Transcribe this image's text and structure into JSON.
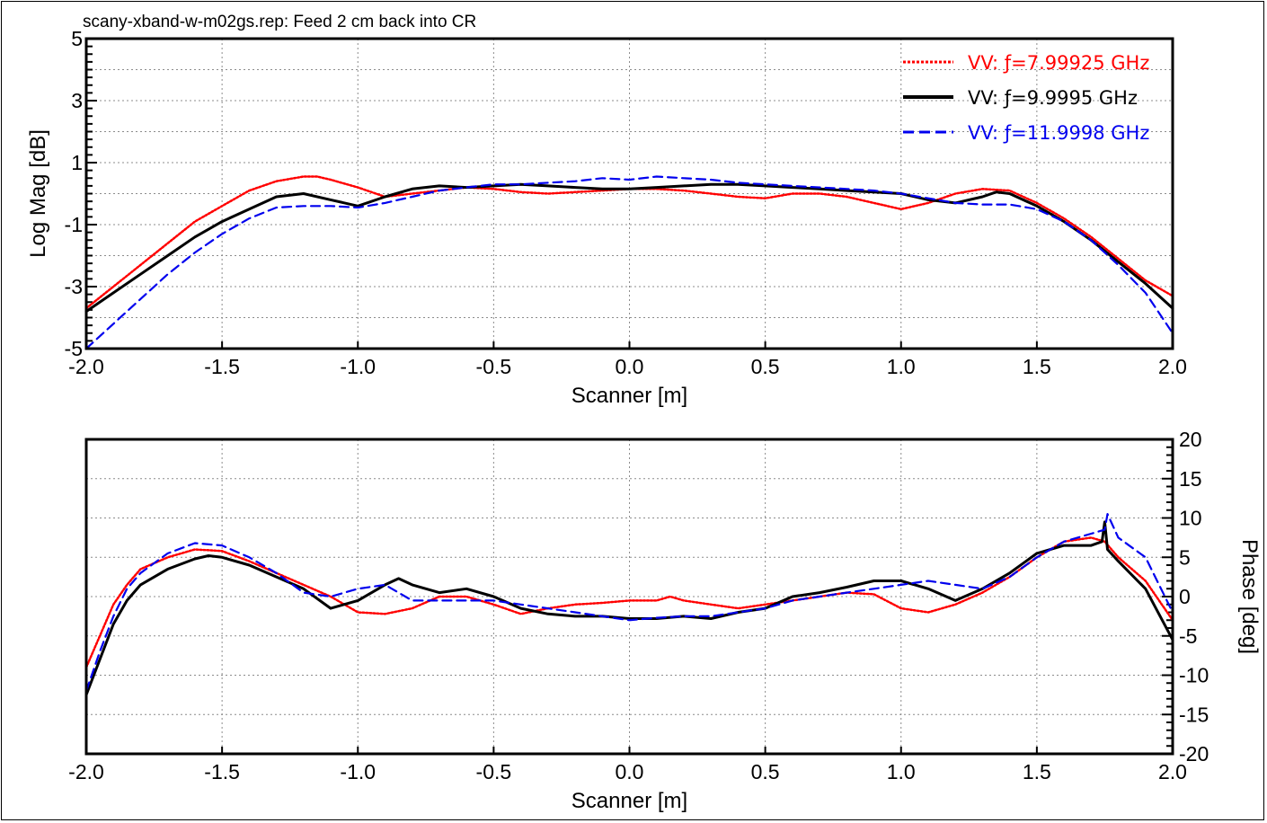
{
  "chart_data": [
    {
      "type": "line",
      "title": "scany-xband-w-m02gs.rep: Feed 2 cm back into CR",
      "xlabel": "Scanner [m]",
      "ylabel": "Log Mag [dB]",
      "xlim": [
        -2.0,
        2.0
      ],
      "ylim": [
        -5,
        5
      ],
      "x_ticks": [
        "-2.0",
        "-1.5",
        "-1.0",
        "-0.5",
        "0.0",
        "0.5",
        "1.0",
        "1.5",
        "2.0"
      ],
      "y_ticks": [
        "5",
        "3",
        "1",
        "-1",
        "-3",
        "-5"
      ],
      "y_tick_values": [
        5,
        3,
        1,
        -1,
        -3,
        -5
      ],
      "grid": true,
      "legend_position": "top-right",
      "series": [
        {
          "name": "VV: ƒ=7.99925 GHz",
          "color": "#ff0000",
          "style": "dotted",
          "x": [
            -2.0,
            -1.9,
            -1.8,
            -1.7,
            -1.6,
            -1.5,
            -1.4,
            -1.3,
            -1.2,
            -1.15,
            -1.1,
            -1.0,
            -0.9,
            -0.8,
            -0.7,
            -0.6,
            -0.5,
            -0.4,
            -0.3,
            -0.2,
            -0.1,
            0.0,
            0.1,
            0.2,
            0.3,
            0.4,
            0.5,
            0.6,
            0.7,
            0.8,
            0.9,
            1.0,
            1.1,
            1.2,
            1.3,
            1.4,
            1.5,
            1.6,
            1.7,
            1.8,
            1.9,
            2.0
          ],
          "y": [
            -3.7,
            -3.0,
            -2.3,
            -1.6,
            -0.9,
            -0.4,
            0.1,
            0.4,
            0.55,
            0.55,
            0.45,
            0.2,
            -0.1,
            0.0,
            0.1,
            0.2,
            0.15,
            0.05,
            0.0,
            0.05,
            0.1,
            0.15,
            0.15,
            0.1,
            0.0,
            -0.1,
            -0.15,
            0.0,
            0.0,
            -0.1,
            -0.3,
            -0.5,
            -0.3,
            0.0,
            0.15,
            0.1,
            -0.3,
            -0.8,
            -1.4,
            -2.1,
            -2.8,
            -3.3
          ]
        },
        {
          "name": "VV: ƒ=9.9995 GHz",
          "color": "#000000",
          "style": "solid",
          "x": [
            -2.0,
            -1.9,
            -1.8,
            -1.7,
            -1.6,
            -1.5,
            -1.4,
            -1.3,
            -1.2,
            -1.1,
            -1.0,
            -0.9,
            -0.8,
            -0.7,
            -0.6,
            -0.5,
            -0.4,
            -0.3,
            -0.2,
            -0.1,
            0.0,
            0.1,
            0.2,
            0.3,
            0.4,
            0.5,
            0.6,
            0.7,
            0.8,
            0.9,
            1.0,
            1.1,
            1.2,
            1.3,
            1.35,
            1.4,
            1.5,
            1.6,
            1.7,
            1.8,
            1.9,
            2.0
          ],
          "y": [
            -3.8,
            -3.2,
            -2.6,
            -2.0,
            -1.4,
            -0.9,
            -0.5,
            -0.1,
            0.0,
            -0.2,
            -0.4,
            -0.1,
            0.15,
            0.25,
            0.2,
            0.25,
            0.3,
            0.25,
            0.2,
            0.15,
            0.15,
            0.2,
            0.25,
            0.3,
            0.3,
            0.25,
            0.2,
            0.15,
            0.1,
            0.05,
            0.0,
            -0.2,
            -0.3,
            -0.1,
            0.05,
            0.0,
            -0.4,
            -0.9,
            -1.5,
            -2.2,
            -2.9,
            -3.7
          ]
        },
        {
          "name": "VV: ƒ=11.9998 GHz",
          "color": "#0000ee",
          "style": "dashed",
          "x": [
            -2.0,
            -1.9,
            -1.8,
            -1.7,
            -1.6,
            -1.5,
            -1.4,
            -1.3,
            -1.2,
            -1.1,
            -1.0,
            -0.9,
            -0.8,
            -0.7,
            -0.6,
            -0.5,
            -0.4,
            -0.3,
            -0.2,
            -0.1,
            0.0,
            0.1,
            0.2,
            0.3,
            0.4,
            0.5,
            0.6,
            0.7,
            0.8,
            0.9,
            1.0,
            1.1,
            1.2,
            1.3,
            1.4,
            1.5,
            1.6,
            1.7,
            1.8,
            1.9,
            2.0
          ],
          "y": [
            -5.0,
            -4.2,
            -3.4,
            -2.6,
            -1.9,
            -1.3,
            -0.8,
            -0.45,
            -0.4,
            -0.4,
            -0.45,
            -0.3,
            -0.1,
            0.1,
            0.2,
            0.3,
            0.3,
            0.35,
            0.4,
            0.5,
            0.45,
            0.55,
            0.5,
            0.45,
            0.35,
            0.3,
            0.25,
            0.2,
            0.15,
            0.1,
            0.0,
            -0.15,
            -0.3,
            -0.35,
            -0.35,
            -0.5,
            -0.9,
            -1.5,
            -2.3,
            -3.2,
            -4.5
          ]
        }
      ]
    },
    {
      "type": "line",
      "title": "",
      "xlabel": "Scanner [m]",
      "ylabel": "Phase [deg]",
      "xlim": [
        -2.0,
        2.0
      ],
      "ylim": [
        -20,
        20
      ],
      "y_axis_side": "right",
      "x_ticks": [
        "-2.0",
        "-1.5",
        "-1.0",
        "-0.5",
        "0.0",
        "0.5",
        "1.0",
        "1.5",
        "2.0"
      ],
      "y_ticks": [
        "20",
        "15",
        "10",
        "5",
        "0",
        "-5",
        "-10",
        "-15",
        "-20"
      ],
      "y_tick_values": [
        20,
        15,
        10,
        5,
        0,
        -5,
        -10,
        -15,
        -20
      ],
      "grid": true,
      "series": [
        {
          "name": "VV: ƒ=7.99925 GHz",
          "color": "#ff0000",
          "style": "dotted",
          "x": [
            -2.0,
            -1.95,
            -1.9,
            -1.85,
            -1.8,
            -1.7,
            -1.6,
            -1.5,
            -1.4,
            -1.3,
            -1.2,
            -1.1,
            -1.0,
            -0.9,
            -0.8,
            -0.7,
            -0.6,
            -0.5,
            -0.4,
            -0.3,
            -0.2,
            -0.1,
            0.0,
            0.1,
            0.15,
            0.2,
            0.3,
            0.4,
            0.5,
            0.6,
            0.7,
            0.8,
            0.9,
            1.0,
            1.1,
            1.2,
            1.3,
            1.4,
            1.5,
            1.6,
            1.7,
            1.75,
            1.8,
            1.9,
            2.0
          ],
          "y": [
            -9,
            -5,
            -1,
            1.5,
            3.5,
            5.0,
            6.0,
            5.8,
            4.5,
            3.0,
            1.5,
            0.0,
            -2.0,
            -2.2,
            -1.5,
            0.0,
            0.0,
            -1.0,
            -2.2,
            -1.5,
            -1.0,
            -0.8,
            -0.5,
            -0.5,
            0.0,
            -0.5,
            -1.0,
            -1.5,
            -1.0,
            -0.5,
            0.0,
            0.5,
            0.3,
            -1.5,
            -2.0,
            -1.0,
            0.5,
            2.5,
            5.0,
            7.0,
            7.5,
            7.0,
            5.0,
            2.0,
            -3.0
          ]
        },
        {
          "name": "VV: ƒ=9.9995 GHz",
          "color": "#000000",
          "style": "solid",
          "x": [
            -2.0,
            -1.95,
            -1.9,
            -1.85,
            -1.8,
            -1.7,
            -1.6,
            -1.55,
            -1.5,
            -1.4,
            -1.3,
            -1.2,
            -1.1,
            -1.0,
            -0.9,
            -0.85,
            -0.8,
            -0.7,
            -0.6,
            -0.5,
            -0.4,
            -0.3,
            -0.2,
            -0.1,
            0.0,
            0.1,
            0.2,
            0.3,
            0.4,
            0.5,
            0.6,
            0.7,
            0.8,
            0.9,
            1.0,
            1.1,
            1.2,
            1.3,
            1.4,
            1.5,
            1.6,
            1.7,
            1.74,
            1.75,
            1.76,
            1.8,
            1.9,
            2.0
          ],
          "y": [
            -12.5,
            -8,
            -3.5,
            -0.5,
            1.5,
            3.5,
            4.8,
            5.2,
            5.0,
            4.0,
            2.5,
            1.0,
            -1.5,
            -0.5,
            1.5,
            2.3,
            1.5,
            0.5,
            1.0,
            0.0,
            -1.5,
            -2.2,
            -2.5,
            -2.5,
            -2.8,
            -2.8,
            -2.5,
            -2.8,
            -2.0,
            -1.5,
            0.0,
            0.5,
            1.2,
            2.0,
            2.0,
            1.0,
            -0.5,
            1.0,
            3.0,
            5.5,
            6.5,
            6.5,
            7.0,
            9.5,
            6.0,
            4.5,
            1.0,
            -5.5
          ]
        },
        {
          "name": "VV: ƒ=11.9998 GHz",
          "color": "#0000ee",
          "style": "dashed",
          "x": [
            -2.0,
            -1.95,
            -1.9,
            -1.85,
            -1.8,
            -1.7,
            -1.6,
            -1.5,
            -1.4,
            -1.3,
            -1.2,
            -1.1,
            -1.0,
            -0.9,
            -0.8,
            -0.7,
            -0.6,
            -0.5,
            -0.4,
            -0.3,
            -0.2,
            -0.1,
            0.0,
            0.1,
            0.2,
            0.3,
            0.4,
            0.5,
            0.6,
            0.7,
            0.8,
            0.9,
            1.0,
            1.1,
            1.2,
            1.3,
            1.4,
            1.5,
            1.6,
            1.7,
            1.75,
            1.76,
            1.8,
            1.9,
            2.0
          ],
          "y": [
            -12,
            -7,
            -2.5,
            1.0,
            3.0,
            5.5,
            6.8,
            6.5,
            5.0,
            3.0,
            0.5,
            0.0,
            1.0,
            1.5,
            -0.5,
            -0.5,
            -0.5,
            -0.5,
            -1.0,
            -1.5,
            -2.0,
            -2.5,
            -3.0,
            -2.7,
            -2.5,
            -2.5,
            -2.0,
            -1.5,
            -0.5,
            0.0,
            0.5,
            1.0,
            1.5,
            2.0,
            1.5,
            1.0,
            2.5,
            5.0,
            7.0,
            8.0,
            8.5,
            10.5,
            7.5,
            5.0,
            -2.0
          ]
        }
      ]
    }
  ]
}
